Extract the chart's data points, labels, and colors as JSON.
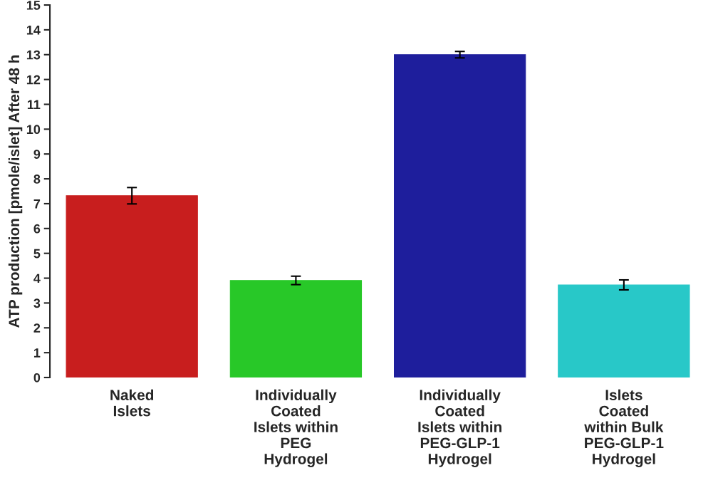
{
  "chart_data": {
    "type": "bar",
    "ylabel": "ATP production [pmole/islet] After 48 h",
    "categories": [
      "Naked\nIslets",
      "Individually\nCoated\nIslets within\nPEG\nHydrogel",
      "Individually\nCoated\nIslets within\nPEG-GLP-1\nHydrogel",
      "Islets\nCoated\nwithin Bulk\nPEG-GLP-1\nHydrogel"
    ],
    "values": [
      7.32,
      3.91,
      13.0,
      3.73
    ],
    "errors": [
      0.33,
      0.17,
      0.13,
      0.2
    ],
    "colors": [
      "#c81e1e",
      "#28c828",
      "#1e1e9c",
      "#28c8c8"
    ],
    "ylim": [
      0,
      15
    ],
    "yticks": [
      0,
      1,
      2,
      3,
      4,
      5,
      6,
      7,
      8,
      9,
      10,
      11,
      12,
      13,
      14,
      15
    ],
    "grid": false,
    "legend": false
  }
}
